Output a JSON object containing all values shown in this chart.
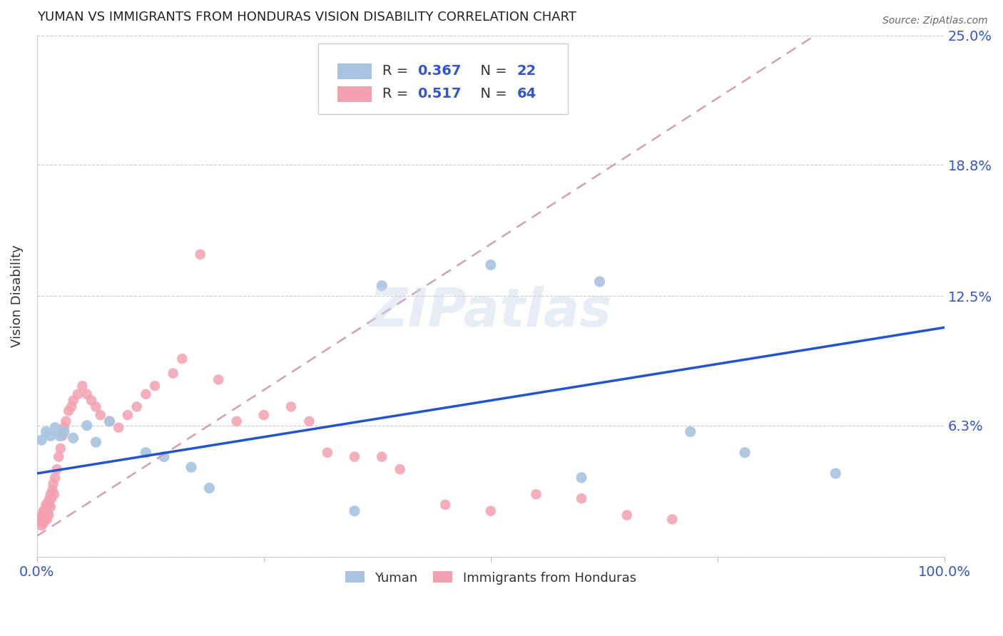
{
  "title": "YUMAN VS IMMIGRANTS FROM HONDURAS VISION DISABILITY CORRELATION CHART",
  "source": "Source: ZipAtlas.com",
  "ylabel": "Vision Disability",
  "xlim": [
    0.0,
    1.0
  ],
  "ylim": [
    0.0,
    0.25
  ],
  "ytick_vals": [
    0.0,
    0.063,
    0.125,
    0.188,
    0.25
  ],
  "ytick_labels": [
    "",
    "6.3%",
    "12.5%",
    "18.8%",
    "25.0%"
  ],
  "background_color": "#ffffff",
  "grid_color": "#cccccc",
  "watermark": "ZIPatlas",
  "yuman_color": "#a8c4e0",
  "honduras_color": "#f4a0b0",
  "yuman_line_color": "#2255cc",
  "honduras_line_color": "#d4a0b0",
  "yuman_scatter": {
    "x": [
      0.005,
      0.01,
      0.015,
      0.02,
      0.025,
      0.03,
      0.04,
      0.055,
      0.065,
      0.08,
      0.12,
      0.14,
      0.17,
      0.19,
      0.35,
      0.38,
      0.5,
      0.6,
      0.72,
      0.78,
      0.88,
      0.62
    ],
    "y": [
      0.056,
      0.06,
      0.058,
      0.062,
      0.058,
      0.06,
      0.057,
      0.063,
      0.055,
      0.065,
      0.05,
      0.048,
      0.043,
      0.033,
      0.022,
      0.13,
      0.14,
      0.038,
      0.06,
      0.05,
      0.04,
      0.132
    ]
  },
  "honduras_scatter": {
    "x": [
      0.004,
      0.005,
      0.006,
      0.006,
      0.007,
      0.007,
      0.008,
      0.008,
      0.009,
      0.01,
      0.01,
      0.011,
      0.011,
      0.012,
      0.012,
      0.013,
      0.013,
      0.014,
      0.015,
      0.015,
      0.016,
      0.017,
      0.018,
      0.019,
      0.02,
      0.022,
      0.024,
      0.026,
      0.028,
      0.03,
      0.032,
      0.035,
      0.038,
      0.04,
      0.045,
      0.05,
      0.055,
      0.06,
      0.065,
      0.07,
      0.08,
      0.09,
      0.1,
      0.11,
      0.12,
      0.13,
      0.15,
      0.16,
      0.18,
      0.2,
      0.22,
      0.25,
      0.28,
      0.3,
      0.32,
      0.35,
      0.38,
      0.4,
      0.45,
      0.5,
      0.55,
      0.6,
      0.65,
      0.7
    ],
    "y": [
      0.018,
      0.015,
      0.02,
      0.017,
      0.016,
      0.022,
      0.02,
      0.018,
      0.022,
      0.025,
      0.019,
      0.024,
      0.018,
      0.026,
      0.021,
      0.025,
      0.02,
      0.028,
      0.03,
      0.024,
      0.028,
      0.032,
      0.035,
      0.03,
      0.038,
      0.042,
      0.048,
      0.052,
      0.058,
      0.062,
      0.065,
      0.07,
      0.072,
      0.075,
      0.078,
      0.082,
      0.078,
      0.075,
      0.072,
      0.068,
      0.065,
      0.062,
      0.068,
      0.072,
      0.078,
      0.082,
      0.088,
      0.095,
      0.145,
      0.085,
      0.065,
      0.068,
      0.072,
      0.065,
      0.05,
      0.048,
      0.048,
      0.042,
      0.025,
      0.022,
      0.03,
      0.028,
      0.02,
      0.018
    ]
  },
  "legend_R1": "0.367",
  "legend_N1": "22",
  "legend_R2": "0.517",
  "legend_N2": "64"
}
